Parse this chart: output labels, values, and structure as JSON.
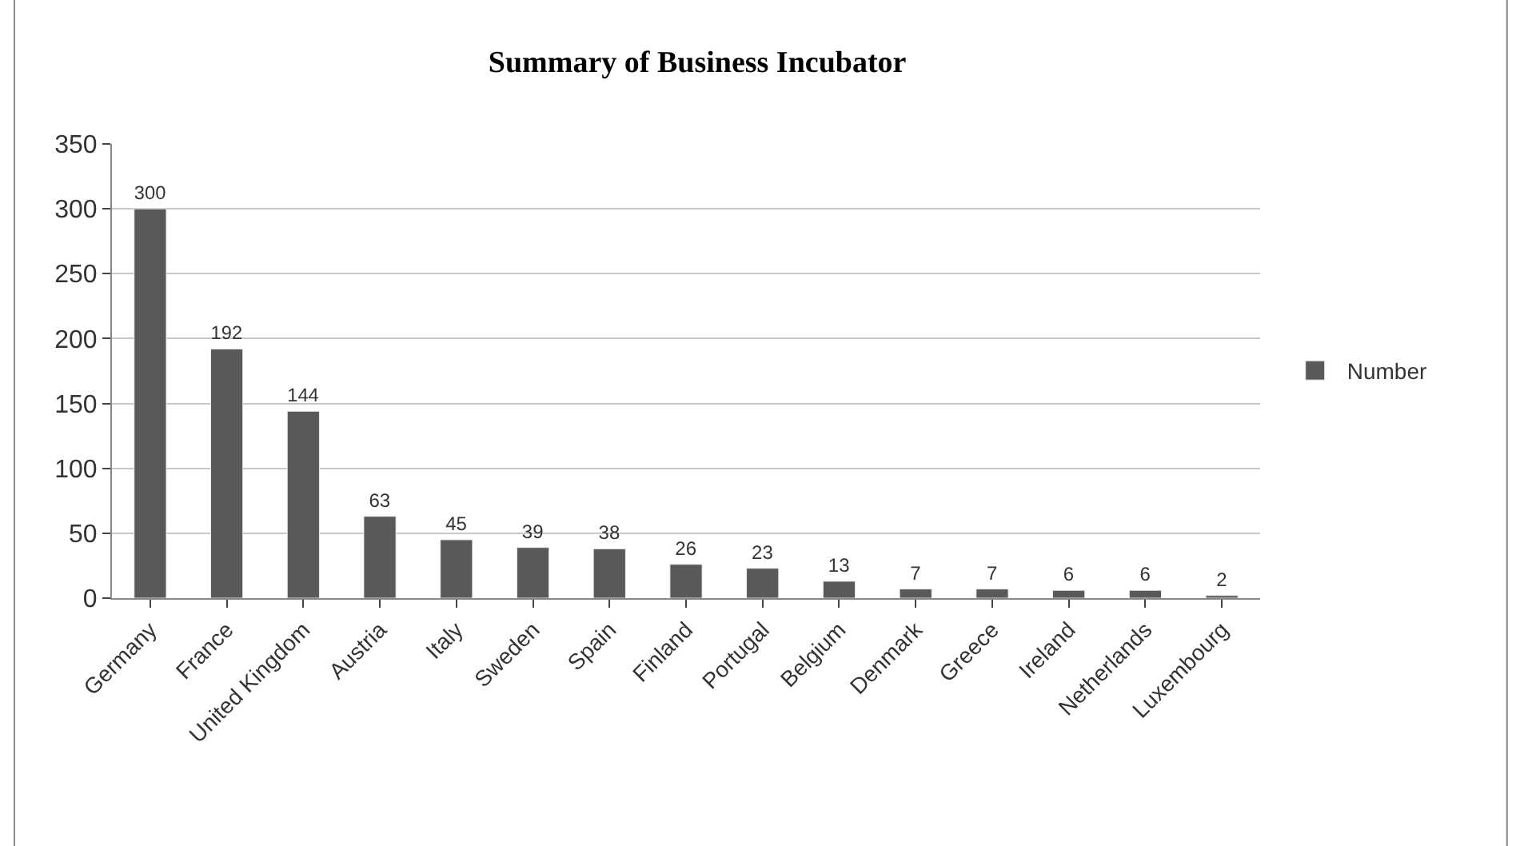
{
  "chart_data": {
    "type": "bar",
    "title": "Summary of Business Incubator",
    "categories": [
      "Germany",
      "France",
      "United Kingdom",
      "Austria",
      "Italy",
      "Sweden",
      "Spain",
      "Finland",
      "Portugal",
      "Belgium",
      "Denmark",
      "Greece",
      "Ireland",
      "Netherlands",
      "Luxembourg"
    ],
    "series": [
      {
        "name": "Number",
        "color": "#595959",
        "values": [
          300,
          192,
          144,
          63,
          45,
          39,
          38,
          26,
          23,
          13,
          7,
          7,
          6,
          6,
          2
        ]
      }
    ],
    "ylim": [
      0,
      350
    ],
    "yticks": [
      0,
      50,
      100,
      150,
      200,
      250,
      300,
      350
    ],
    "grid": "y",
    "legend": "right",
    "data_labels": true
  }
}
